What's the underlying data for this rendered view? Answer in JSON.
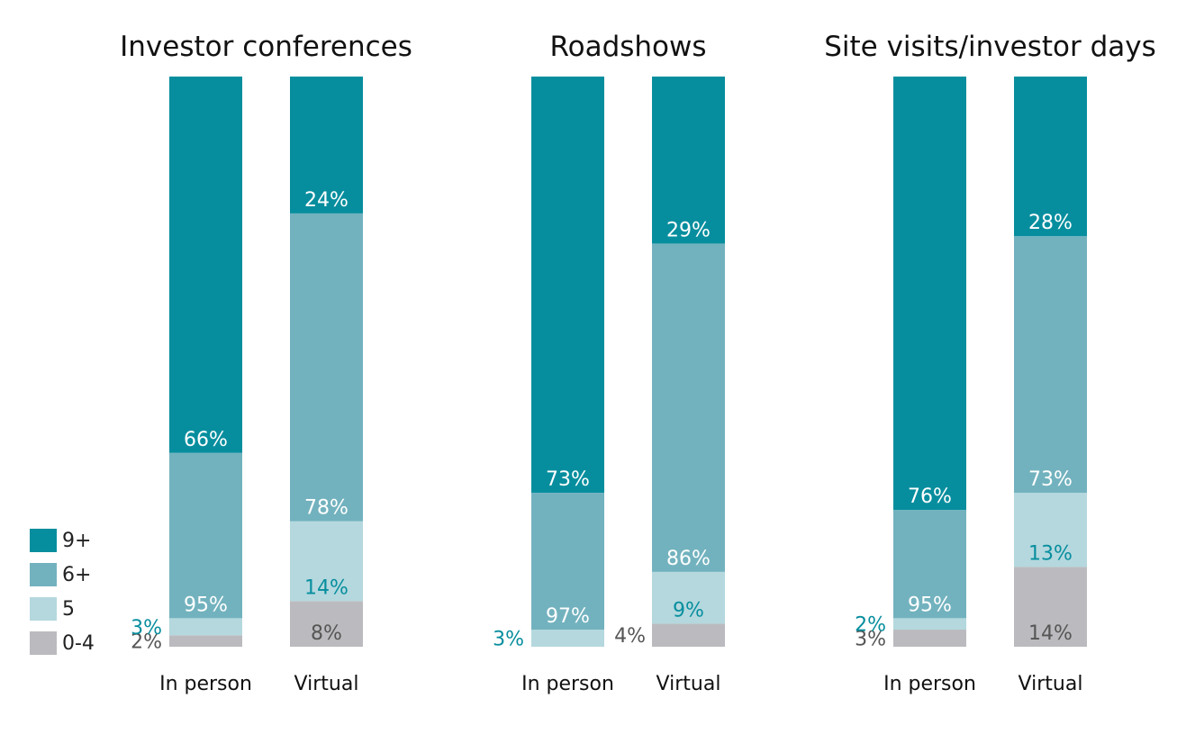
{
  "colors": {
    "9+": "#078e9e",
    "6+": "#72b2be",
    "5": "#b4d8de",
    "0-4": "#bbbbbf",
    "label_inside": "#ffffff",
    "label_teal": "#078e9e",
    "label_gray": "#555555"
  },
  "legend": [
    {
      "key": "9+",
      "label": "9+"
    },
    {
      "key": "6+",
      "label": "6+"
    },
    {
      "key": "5",
      "label": "5"
    },
    {
      "key": "0-4",
      "label": "0-4"
    }
  ],
  "chart_data": [
    {
      "type": "bar",
      "stacked": true,
      "title": "Investor conferences",
      "categories": [
        "In person",
        "Virtual"
      ],
      "series": [
        {
          "name": "0-4",
          "values": [
            2,
            8
          ],
          "labels": [
            "2%",
            "8%"
          ]
        },
        {
          "name": "5",
          "values": [
            3,
            14
          ],
          "labels": [
            "3%",
            "14%"
          ]
        },
        {
          "name": "6+",
          "values": [
            29,
            54
          ],
          "labels": [
            "95%",
            "78%"
          ]
        },
        {
          "name": "9+",
          "values": [
            66,
            24
          ],
          "labels": [
            "66%",
            "24%"
          ]
        }
      ],
      "ylim": [
        0,
        100
      ]
    },
    {
      "type": "bar",
      "stacked": true,
      "title": "Roadshows",
      "categories": [
        "In person",
        "Virtual"
      ],
      "series": [
        {
          "name": "0-4",
          "values": [
            0,
            4
          ],
          "labels": [
            "",
            "4%"
          ]
        },
        {
          "name": "5",
          "values": [
            3,
            9
          ],
          "labels": [
            "3%",
            "9%"
          ]
        },
        {
          "name": "6+",
          "values": [
            24,
            57
          ],
          "labels": [
            "97%",
            "86%"
          ]
        },
        {
          "name": "9+",
          "values": [
            73,
            29
          ],
          "labels": [
            "73%",
            "29%"
          ]
        }
      ],
      "ylim": [
        0,
        100
      ]
    },
    {
      "type": "bar",
      "stacked": true,
      "title": "Site visits/investor days",
      "categories": [
        "In person",
        "Virtual"
      ],
      "series": [
        {
          "name": "0-4",
          "values": [
            3,
            14
          ],
          "labels": [
            "3%",
            "14%"
          ]
        },
        {
          "name": "5",
          "values": [
            2,
            13
          ],
          "labels": [
            "2%",
            "13%"
          ]
        },
        {
          "name": "6+",
          "values": [
            19,
            45
          ],
          "labels": [
            "95%",
            "73%"
          ]
        },
        {
          "name": "9+",
          "values": [
            76,
            28
          ],
          "labels": [
            "76%",
            "28%"
          ]
        }
      ],
      "ylim": [
        0,
        100
      ]
    }
  ]
}
